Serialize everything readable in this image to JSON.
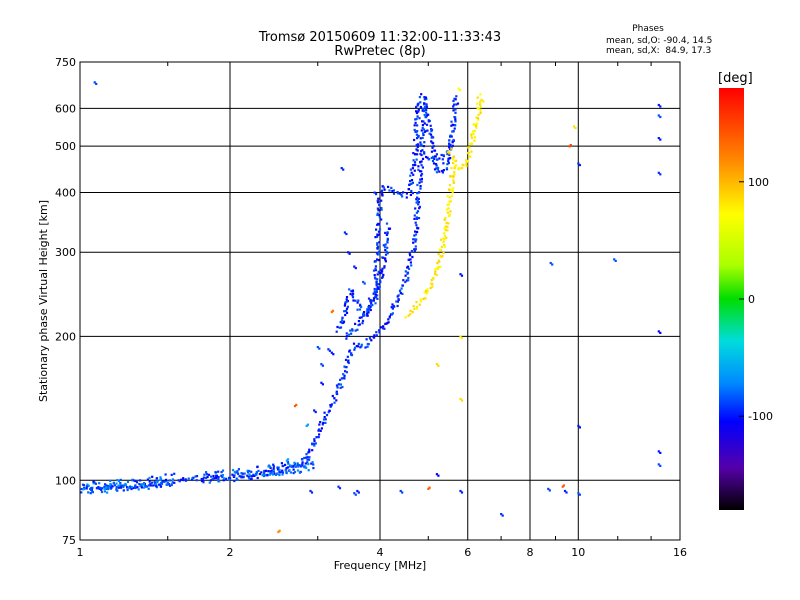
{
  "chart_data": {
    "type": "scatter",
    "title": "Tromsø 20150609 11:32:00-11:33:43",
    "subtitle": "RwPretec (8p)",
    "xlabel": "Frequency [MHz]",
    "ylabel": "Stationary phase Virtual Height [km]",
    "x_scale": "log",
    "y_scale": "log",
    "xlim": [
      1,
      16
    ],
    "ylim": [
      75,
      750
    ],
    "grid": true,
    "x_ticks": [
      1,
      2,
      4,
      6,
      8,
      10,
      16
    ],
    "x_tick_labels": [
      "1",
      "2",
      "4",
      "6",
      "8",
      "10",
      "16"
    ],
    "y_ticks": [
      75,
      100,
      200,
      300,
      400,
      500,
      600,
      750
    ],
    "y_tick_labels": [
      "75",
      "100",
      "200",
      "300",
      "400",
      "500",
      "600",
      "750"
    ],
    "stats": {
      "title": "Phases",
      "line_o": "mean, sd,O: -90.4, 14.5",
      "line_x": "mean, sd,X:  84.9, 17.3"
    },
    "colorbar": {
      "label": "[deg]",
      "range": [
        -180,
        180
      ],
      "ticks": [
        100,
        0,
        -100
      ],
      "tick_labels": [
        "100",
        "0",
        "-100"
      ]
    },
    "series": [
      {
        "traces": [
          [
            [
              1.0,
              97
            ],
            [
              1.08,
              96
            ],
            [
              1.15,
              97
            ],
            [
              1.25,
              97
            ],
            [
              1.35,
              98
            ],
            [
              1.45,
              98
            ],
            [
              1.52,
              99
            ],
            [
              1.8,
              102
            ],
            [
              1.95,
              101
            ],
            [
              2.1,
              102
            ],
            [
              2.3,
              103
            ],
            [
              2.45,
              104
            ],
            [
              2.6,
              105
            ],
            [
              2.75,
              108
            ],
            [
              2.9,
              115
            ],
            [
              3.0,
              125
            ],
            [
              3.1,
              135
            ],
            [
              3.2,
              145
            ],
            [
              3.3,
              155
            ],
            [
              3.4,
              170
            ],
            [
              3.5,
              188
            ],
            [
              3.6,
              192
            ],
            [
              3.7,
              190
            ],
            [
              3.8,
              195
            ],
            [
              3.9,
              200
            ],
            [
              4.0,
              205
            ],
            [
              4.1,
              212
            ],
            [
              4.2,
              222
            ],
            [
              4.3,
              232
            ],
            [
              4.4,
              245
            ],
            [
              4.5,
              262
            ],
            [
              4.6,
              285
            ],
            [
              4.7,
              320
            ],
            [
              4.75,
              365
            ],
            [
              4.8,
              420
            ],
            [
              4.85,
              480
            ],
            [
              4.9,
              560
            ],
            [
              4.95,
              640
            ]
          ],
          [
            [
              3.3,
              205
            ],
            [
              3.4,
              225
            ],
            [
              3.5,
              250
            ],
            [
              3.6,
              235
            ],
            [
              3.7,
              220
            ],
            [
              3.8,
              225
            ],
            [
              3.9,
              240
            ],
            [
              3.95,
              300
            ],
            [
              4.0,
              390
            ],
            [
              4.05,
              410
            ],
            [
              4.3,
              400
            ],
            [
              4.5,
              395
            ],
            [
              4.6,
              400
            ],
            [
              4.7,
              480
            ],
            [
              4.75,
              560
            ],
            [
              4.8,
              640
            ]
          ],
          [
            [
              4.9,
              620
            ],
            [
              5.0,
              560
            ],
            [
              5.1,
              500
            ],
            [
              5.2,
              450
            ],
            [
              5.3,
              440
            ],
            [
              5.4,
              450
            ],
            [
              5.5,
              480
            ],
            [
              5.6,
              540
            ],
            [
              5.65,
              600
            ],
            [
              5.7,
              640
            ]
          ],
          [
            [
              3.4,
              200
            ],
            [
              3.5,
              205
            ],
            [
              3.6,
              210
            ],
            [
              3.7,
              218
            ],
            [
              3.8,
              228
            ],
            [
              3.9,
              240
            ],
            [
              4.0,
              260
            ],
            [
              4.1,
              300
            ],
            [
              4.15,
              345
            ]
          ],
          [
            [
              5.0,
              480
            ],
            [
              5.1,
              470
            ],
            [
              5.3,
              475
            ],
            [
              5.5,
              490
            ],
            [
              5.6,
              520
            ]
          ]
        ],
        "scatter": [
          [
            1.07,
            680
          ],
          [
            3.35,
            450
          ],
          [
            3.4,
            330
          ],
          [
            3.45,
            300
          ],
          [
            3.55,
            280
          ],
          [
            3.7,
            260
          ],
          [
            3.8,
            240
          ],
          [
            3.2,
            185
          ],
          [
            3.15,
            188
          ],
          [
            3.05,
            175
          ],
          [
            3.0,
            190
          ],
          [
            2.95,
            140
          ],
          [
            3.05,
            160
          ],
          [
            2.9,
            95
          ],
          [
            3.3,
            97
          ],
          [
            3.55,
            94
          ],
          [
            3.6,
            95
          ],
          [
            4.4,
            95
          ],
          [
            5.2,
            103
          ],
          [
            5.8,
            95
          ],
          [
            7.0,
            85
          ],
          [
            8.7,
            96
          ],
          [
            9.4,
            95
          ],
          [
            10.0,
            94
          ],
          [
            8.8,
            285
          ],
          [
            10.0,
            460
          ],
          [
            11.8,
            290
          ],
          [
            14.5,
            610
          ],
          [
            14.5,
            580
          ],
          [
            14.5,
            520
          ],
          [
            14.5,
            440
          ],
          [
            14.5,
            205
          ],
          [
            14.5,
            108
          ],
          [
            14.5,
            115
          ],
          [
            10.0,
            130
          ],
          [
            5.8,
            270
          ],
          [
            3.9,
            400
          ]
        ]
      },
      {
        "traces": [
          [
            [
              4.5,
              222
            ],
            [
              4.6,
              225
            ],
            [
              4.7,
              230
            ],
            [
              4.8,
              235
            ],
            [
              4.9,
              242
            ],
            [
              5.0,
              250
            ],
            [
              5.1,
              262
            ],
            [
              5.2,
              278
            ],
            [
              5.3,
              300
            ],
            [
              5.4,
              330
            ],
            [
              5.5,
              370
            ],
            [
              5.55,
              410
            ],
            [
              5.6,
              455
            ]
          ],
          [
            [
              5.5,
              490
            ],
            [
              5.6,
              470
            ],
            [
              5.7,
              455
            ],
            [
              5.8,
              450
            ],
            [
              5.9,
              455
            ],
            [
              6.0,
              470
            ],
            [
              6.1,
              500
            ],
            [
              6.2,
              540
            ],
            [
              6.3,
              590
            ],
            [
              6.35,
              640
            ]
          ]
        ],
        "scatter": [
          [
            5.2,
            175
          ],
          [
            5.8,
            148
          ],
          [
            5.8,
            200
          ],
          [
            5.75,
            660
          ],
          [
            9.8,
            550
          ],
          [
            6.4,
            625
          ]
        ]
      }
    ],
    "scatter_misc": [
      {
        "x": 2.5,
        "y": 78,
        "value": 120
      },
      {
        "x": 2.7,
        "y": 143,
        "value": 140
      },
      {
        "x": 5.0,
        "y": 96,
        "value": 140
      },
      {
        "x": 9.3,
        "y": 97,
        "value": 140
      },
      {
        "x": 9.6,
        "y": 500,
        "value": 150
      },
      {
        "x": 3.2,
        "y": 225,
        "value": 130
      },
      {
        "x": 2.85,
        "y": 130,
        "value": -60
      },
      {
        "x": 2.6,
        "y": 110,
        "value": -60
      },
      {
        "x": 1.12,
        "y": 96,
        "value": -60
      }
    ]
  }
}
